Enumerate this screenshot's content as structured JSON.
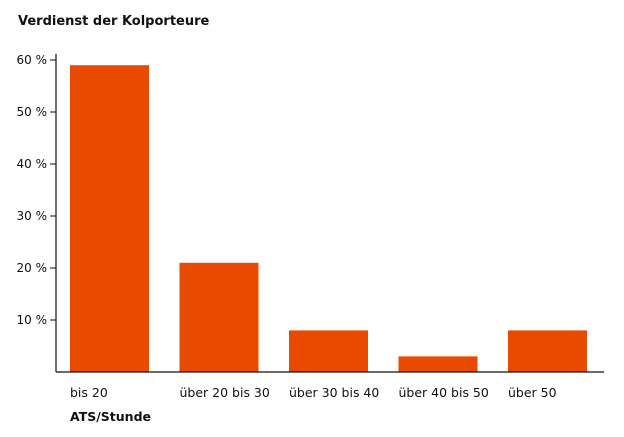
{
  "chart_data": {
    "type": "bar",
    "title": "Verdienst der Kolporteure",
    "xlabel": "ATS/Stunde",
    "ylabel": "",
    "categories": [
      "bis 20",
      "über 20 bis 30",
      "über 30 bis 40",
      "über 40 bis 50",
      "über 50"
    ],
    "values": [
      59,
      21,
      8,
      3,
      8
    ],
    "ylim": [
      0,
      60
    ],
    "yticks": [
      10,
      20,
      30,
      40,
      50,
      60
    ],
    "ytick_labels": [
      "10 %",
      "20 %",
      "30 %",
      "40 %",
      "50 %",
      "60 %"
    ],
    "bar_color": "#e84a00",
    "grid": false,
    "legend": "none"
  }
}
